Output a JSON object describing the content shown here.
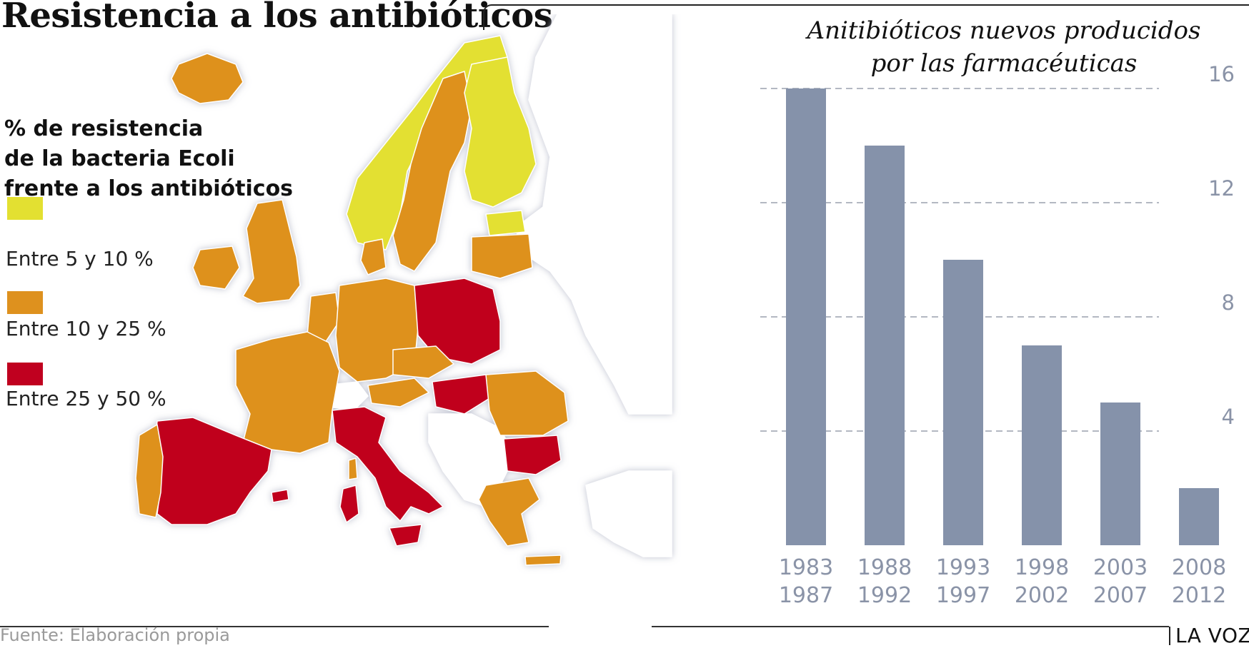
{
  "header": {
    "title": "Resistencia a los antibióticos"
  },
  "legend": {
    "title_lines": [
      "% de resistencia",
      "de la bacteria Ecoli",
      "frente a los antibióticos"
    ],
    "items": [
      {
        "label": "Entre 5 y 10 %",
        "color": "#e3e031"
      },
      {
        "label": "Entre 10 y 25 %",
        "color": "#de911e"
      },
      {
        "label": "Entre 25 y 50 %",
        "color": "#c0001f"
      }
    ]
  },
  "map": {
    "colors": {
      "low": "#e3e031",
      "mid": "#de911e",
      "high": "#c0001f",
      "nodata": "#ffffff",
      "sea": "#ffffff",
      "outline": "#c9ccd6"
    }
  },
  "chart_data": {
    "type": "bar",
    "title": "Anitibióticos nuevos producidos por las farmacéuticas",
    "title_lines": [
      "Anitibióticos nuevos producidos",
      "por las farmacéuticas"
    ],
    "categories": [
      [
        "1983",
        "1987"
      ],
      [
        "1988",
        "1992"
      ],
      [
        "1993",
        "1997"
      ],
      [
        "1998",
        "2002"
      ],
      [
        "2003",
        "2007"
      ],
      [
        "2008",
        "2012"
      ]
    ],
    "values": [
      16,
      14,
      10,
      7,
      5,
      2
    ],
    "yticks": [
      "4",
      "8",
      "12",
      "16"
    ],
    "ylim": [
      0,
      16
    ],
    "grid": true,
    "bar_color": "#8592aa",
    "grid_color": "#9aa0ad",
    "xlabel": "",
    "ylabel": ""
  },
  "footer": {
    "source": "Fuente: Elaboración propia",
    "brand": "LA VOZ"
  }
}
